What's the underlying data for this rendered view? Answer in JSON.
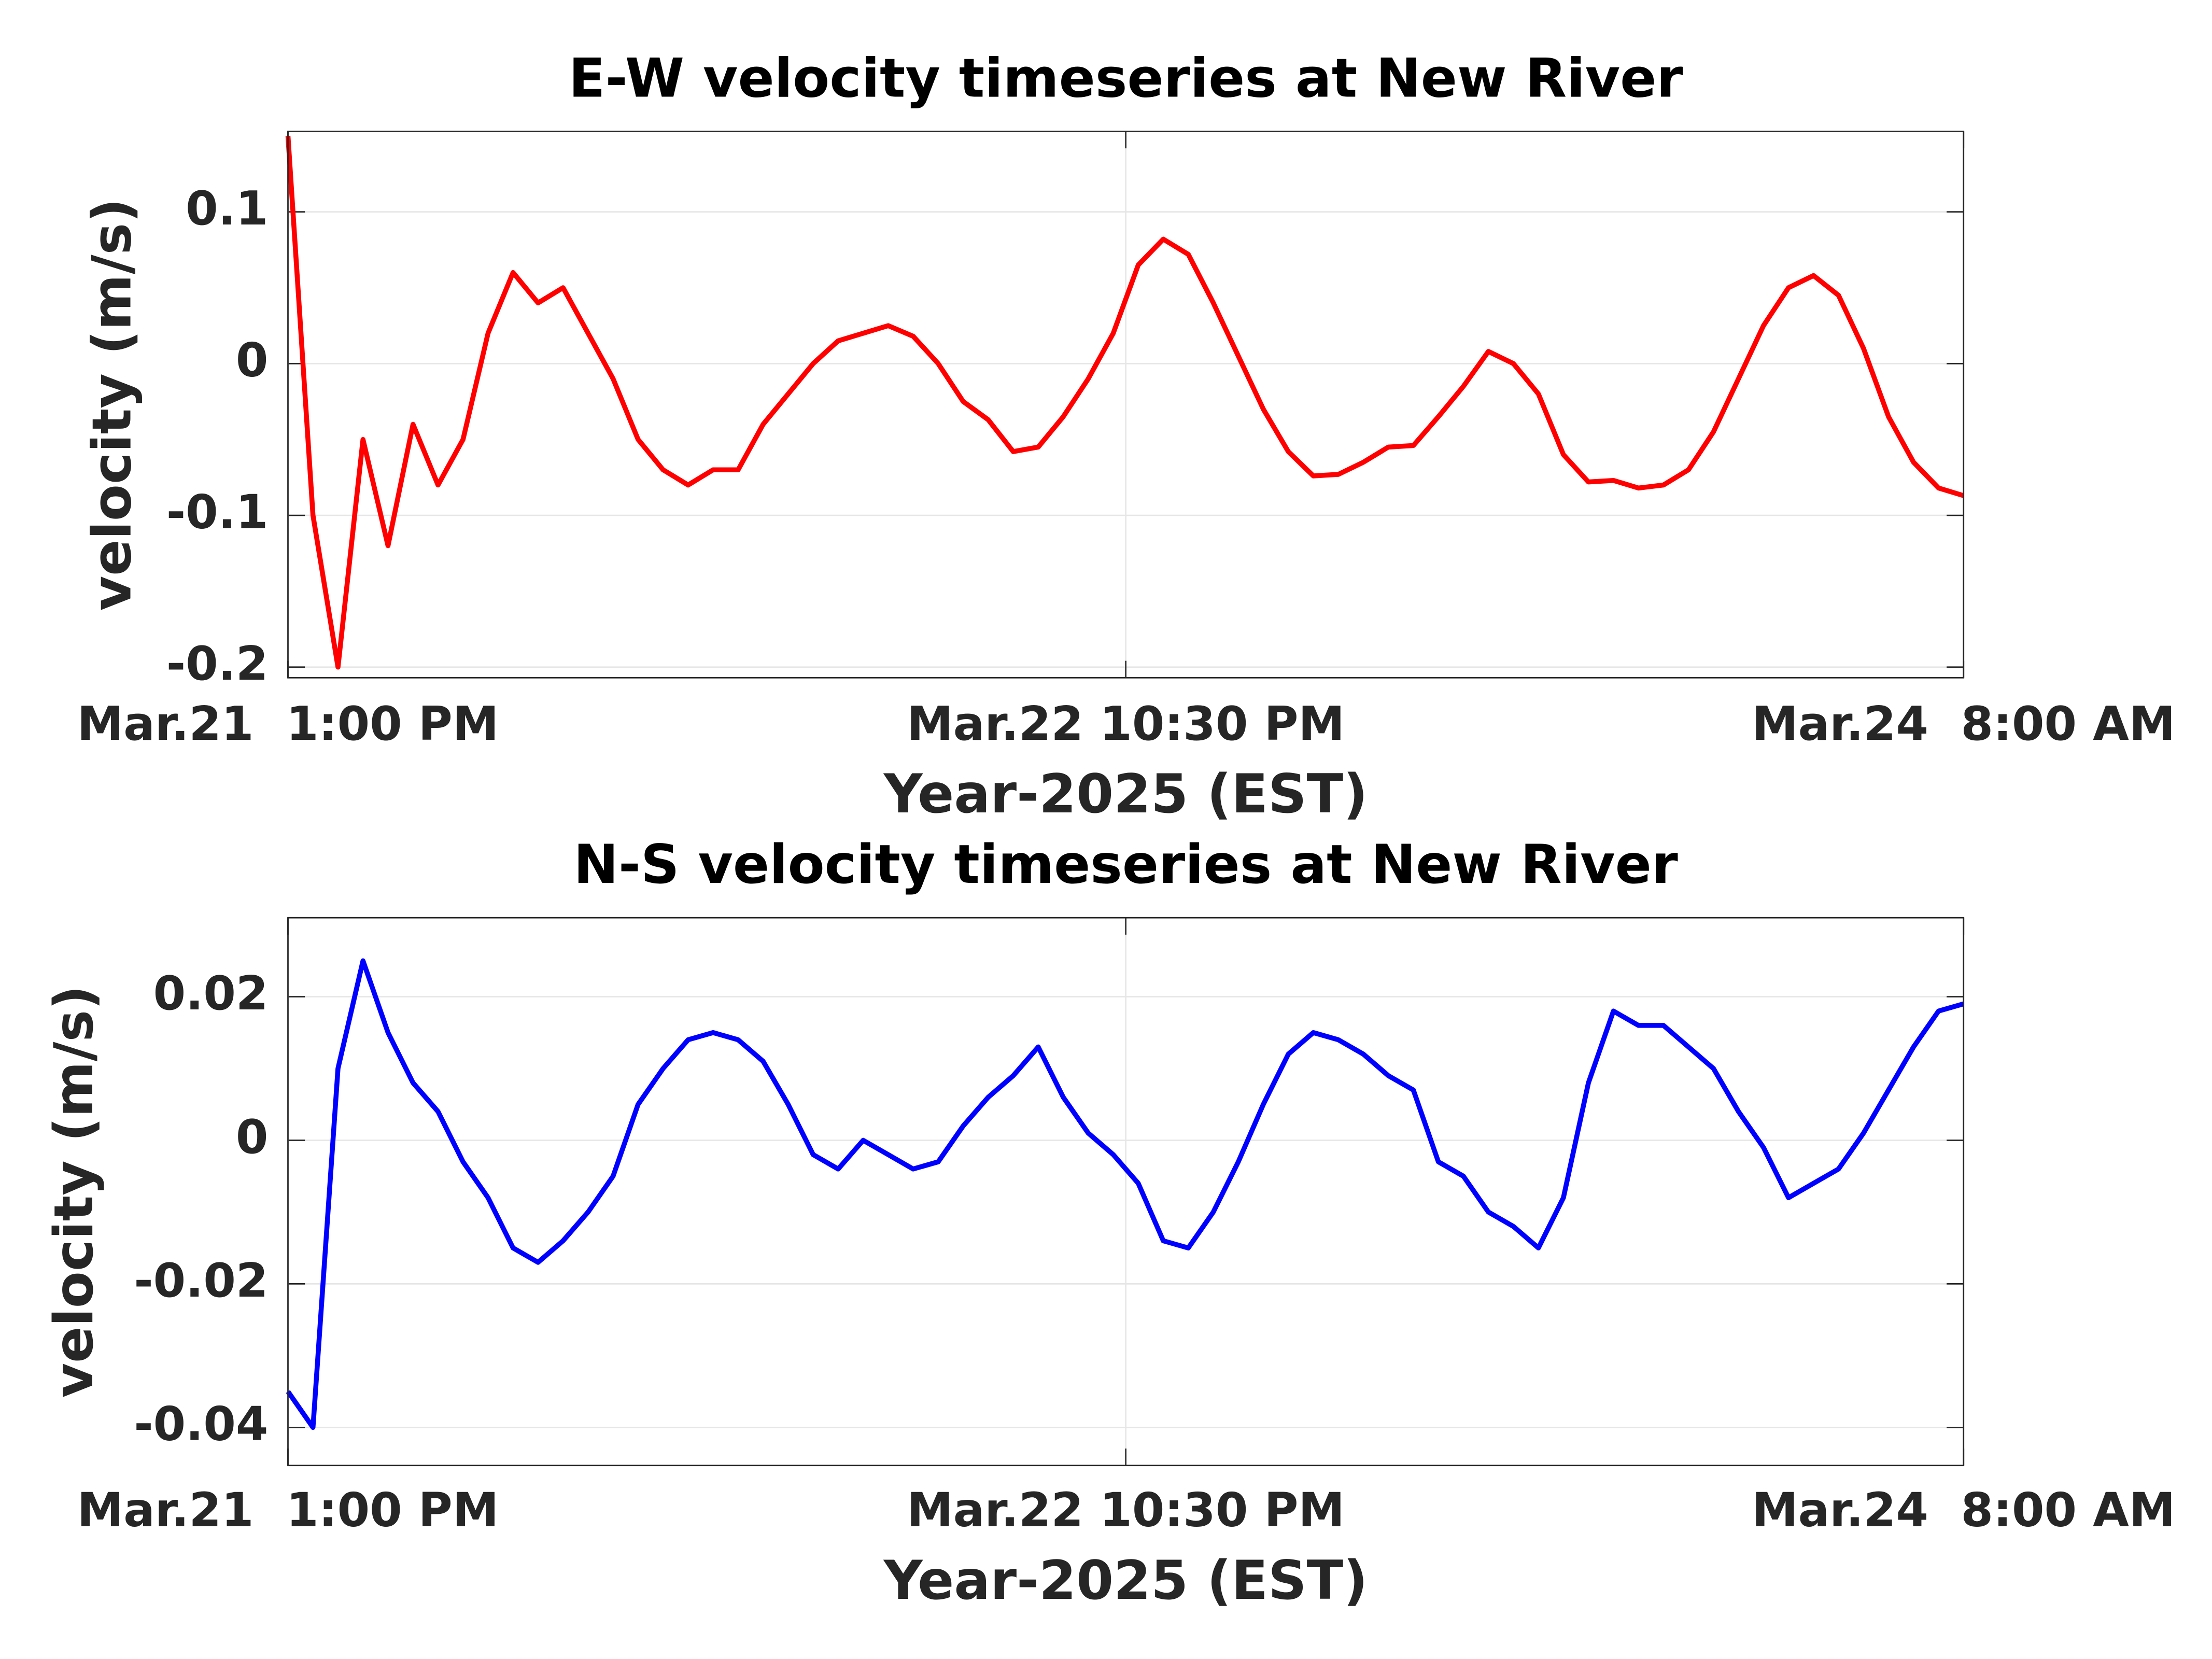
{
  "chart_data": [
    {
      "type": "line",
      "title": "E-W velocity timeseries at New River",
      "x_label": "Year-2025 (EST)",
      "y_label": "velocity (m/s)",
      "grid": true,
      "x": [
        "2025-03-21T13:00",
        "2025-03-21T14:00",
        "2025-03-21T15:00",
        "2025-03-21T16:00",
        "2025-03-21T17:00",
        "2025-03-21T18:00",
        "2025-03-21T19:00",
        "2025-03-21T20:00",
        "2025-03-21T21:00",
        "2025-03-21T22:00",
        "2025-03-21T23:00",
        "2025-03-22T00:00",
        "2025-03-22T01:00",
        "2025-03-22T02:00",
        "2025-03-22T03:00",
        "2025-03-22T04:00",
        "2025-03-22T05:00",
        "2025-03-22T06:00",
        "2025-03-22T07:00",
        "2025-03-22T08:00",
        "2025-03-22T09:00",
        "2025-03-22T10:00",
        "2025-03-22T11:00",
        "2025-03-22T12:00",
        "2025-03-22T13:00",
        "2025-03-22T14:00",
        "2025-03-22T15:00",
        "2025-03-22T16:00",
        "2025-03-22T17:00",
        "2025-03-22T18:00",
        "2025-03-22T19:00",
        "2025-03-22T20:00",
        "2025-03-22T21:00",
        "2025-03-22T22:00",
        "2025-03-22T23:00",
        "2025-03-23T00:00",
        "2025-03-23T01:00",
        "2025-03-23T02:00",
        "2025-03-23T03:00",
        "2025-03-23T04:00",
        "2025-03-23T05:00",
        "2025-03-23T06:00",
        "2025-03-23T07:00",
        "2025-03-23T08:00",
        "2025-03-23T09:00",
        "2025-03-23T10:00",
        "2025-03-23T11:00",
        "2025-03-23T12:00",
        "2025-03-23T13:00",
        "2025-03-23T14:00",
        "2025-03-23T15:00",
        "2025-03-23T16:00",
        "2025-03-23T17:00",
        "2025-03-23T18:00",
        "2025-03-23T19:00",
        "2025-03-23T20:00",
        "2025-03-23T21:00",
        "2025-03-23T22:00",
        "2025-03-23T23:00",
        "2025-03-24T00:00",
        "2025-03-24T01:00",
        "2025-03-24T02:00",
        "2025-03-24T03:00",
        "2025-03-24T04:00",
        "2025-03-24T05:00",
        "2025-03-24T06:00",
        "2025-03-24T07:00",
        "2025-03-24T08:00"
      ],
      "series": [
        {
          "color": "#ff0000",
          "values": [
            0.15,
            -0.1,
            -0.2,
            -0.05,
            -0.12,
            -0.04,
            -0.08,
            -0.05,
            0.02,
            0.06,
            0.04,
            0.05,
            0.02,
            -0.01,
            -0.05,
            -0.07,
            -0.08,
            -0.07,
            -0.07,
            -0.04,
            -0.02,
            0.0,
            0.015,
            0.02,
            0.025,
            0.018,
            0.0,
            -0.025,
            -0.037,
            -0.058,
            -0.055,
            -0.035,
            -0.01,
            0.02,
            0.065,
            0.082,
            0.072,
            0.04,
            0.005,
            -0.03,
            -0.058,
            -0.074,
            -0.073,
            -0.065,
            -0.055,
            -0.054,
            -0.035,
            -0.015,
            0.008,
            0.0,
            -0.02,
            -0.06,
            -0.078,
            -0.077,
            -0.082,
            -0.08,
            -0.07,
            -0.045,
            -0.01,
            0.025,
            0.05,
            0.058,
            0.045,
            0.01,
            -0.035,
            -0.065,
            -0.082,
            -0.087
          ]
        }
      ],
      "xlim": [
        "2025-03-21T13:00",
        "2025-03-24T08:00"
      ],
      "xticks": [
        {
          "value": "2025-03-21T13:00",
          "label": "Mar.21  1:00 PM"
        },
        {
          "value": "2025-03-22T22:30",
          "label": "Mar.22 10:30 PM"
        },
        {
          "value": "2025-03-24T08:00",
          "label": "Mar.24  8:00 AM"
        }
      ],
      "ylim": [
        -0.207,
        0.153
      ],
      "yticks": [
        -0.2,
        -0.1,
        0,
        0.1
      ]
    },
    {
      "type": "line",
      "title": "N-S velocity timeseries at New River",
      "x_label": "Year-2025 (EST)",
      "y_label": "velocity (m/s)",
      "grid": true,
      "x": [
        "2025-03-21T13:00",
        "2025-03-21T14:00",
        "2025-03-21T15:00",
        "2025-03-21T16:00",
        "2025-03-21T17:00",
        "2025-03-21T18:00",
        "2025-03-21T19:00",
        "2025-03-21T20:00",
        "2025-03-21T21:00",
        "2025-03-21T22:00",
        "2025-03-21T23:00",
        "2025-03-22T00:00",
        "2025-03-22T01:00",
        "2025-03-22T02:00",
        "2025-03-22T03:00",
        "2025-03-22T04:00",
        "2025-03-22T05:00",
        "2025-03-22T06:00",
        "2025-03-22T07:00",
        "2025-03-22T08:00",
        "2025-03-22T09:00",
        "2025-03-22T10:00",
        "2025-03-22T11:00",
        "2025-03-22T12:00",
        "2025-03-22T13:00",
        "2025-03-22T14:00",
        "2025-03-22T15:00",
        "2025-03-22T16:00",
        "2025-03-22T17:00",
        "2025-03-22T18:00",
        "2025-03-22T19:00",
        "2025-03-22T20:00",
        "2025-03-22T21:00",
        "2025-03-22T22:00",
        "2025-03-22T23:00",
        "2025-03-23T00:00",
        "2025-03-23T01:00",
        "2025-03-23T02:00",
        "2025-03-23T03:00",
        "2025-03-23T04:00",
        "2025-03-23T05:00",
        "2025-03-23T06:00",
        "2025-03-23T07:00",
        "2025-03-23T08:00",
        "2025-03-23T09:00",
        "2025-03-23T10:00",
        "2025-03-23T11:00",
        "2025-03-23T12:00",
        "2025-03-23T13:00",
        "2025-03-23T14:00",
        "2025-03-23T15:00",
        "2025-03-23T16:00",
        "2025-03-23T17:00",
        "2025-03-23T18:00",
        "2025-03-23T19:00",
        "2025-03-23T20:00",
        "2025-03-23T21:00",
        "2025-03-23T22:00",
        "2025-03-23T23:00",
        "2025-03-24T00:00",
        "2025-03-24T01:00",
        "2025-03-24T02:00",
        "2025-03-24T03:00",
        "2025-03-24T04:00",
        "2025-03-24T05:00",
        "2025-03-24T06:00",
        "2025-03-24T07:00",
        "2025-03-24T08:00"
      ],
      "series": [
        {
          "color": "#0000ff",
          "values": [
            -0.035,
            -0.04,
            0.01,
            0.025,
            0.015,
            0.008,
            0.004,
            -0.003,
            -0.008,
            -0.015,
            -0.017,
            -0.014,
            -0.01,
            -0.005,
            0.005,
            0.01,
            0.014,
            0.015,
            0.014,
            0.011,
            0.005,
            -0.002,
            -0.004,
            0.0,
            -0.002,
            -0.004,
            -0.003,
            0.002,
            0.006,
            0.009,
            0.013,
            0.006,
            0.001,
            -0.002,
            -0.006,
            -0.014,
            -0.015,
            -0.01,
            -0.003,
            0.005,
            0.012,
            0.015,
            0.014,
            0.012,
            0.009,
            0.007,
            -0.003,
            -0.005,
            -0.01,
            -0.012,
            -0.015,
            -0.008,
            0.008,
            0.018,
            0.016,
            0.016,
            0.013,
            0.01,
            0.004,
            -0.001,
            -0.008,
            -0.006,
            -0.004,
            0.001,
            0.007,
            0.013,
            0.018,
            0.019
          ]
        }
      ],
      "xlim": [
        "2025-03-21T13:00",
        "2025-03-24T08:00"
      ],
      "xticks": [
        {
          "value": "2025-03-21T13:00",
          "label": "Mar.21  1:00 PM"
        },
        {
          "value": "2025-03-22T22:30",
          "label": "Mar.22 10:30 PM"
        },
        {
          "value": "2025-03-24T08:00",
          "label": "Mar.24  8:00 AM"
        }
      ],
      "ylim": [
        -0.0453,
        0.031
      ],
      "yticks": [
        -0.04,
        -0.02,
        0,
        0.02
      ]
    }
  ]
}
